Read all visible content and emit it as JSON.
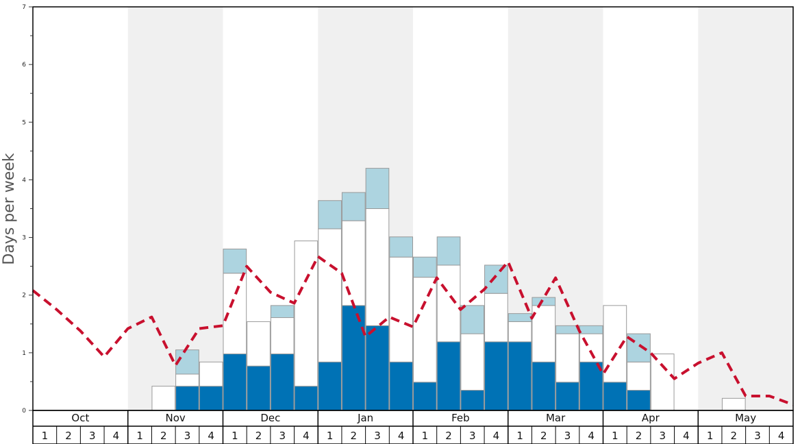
{
  "chart_data": {
    "type": "bar",
    "ylabel": "Days per week",
    "ylim": [
      0,
      7
    ],
    "y_ticks": [
      "0",
      "1",
      "2",
      "3",
      "4",
      "5",
      "6",
      "7"
    ],
    "months": [
      "Oct",
      "Nov",
      "Dec",
      "Jan",
      "Feb",
      "Mar",
      "Apr",
      "May"
    ],
    "weeks_per_month": [
      "1",
      "2",
      "3",
      "4"
    ],
    "shaded_months": [
      1,
      3,
      5,
      7
    ],
    "colors": {
      "dark": "#0072b5",
      "white": "#ffffff",
      "light": "#add4e0",
      "line": "#c8102e",
      "shade": "#f0f0f0",
      "bar_stroke": "#999999"
    },
    "series": [
      {
        "key": "dark",
        "values": [
          0,
          0,
          0,
          0,
          0,
          0,
          0.42,
          0.42,
          0.98,
          0.77,
          0.98,
          0.42,
          0.84,
          1.82,
          1.47,
          0.84,
          0.49,
          1.19,
          0.35,
          1.19,
          1.19,
          0.84,
          0.49,
          0.84,
          0.49,
          0.35,
          0,
          0,
          0,
          0,
          0,
          0
        ]
      },
      {
        "key": "white",
        "values": [
          0,
          0,
          0,
          0,
          0,
          0.42,
          0.21,
          0.42,
          1.4,
          0.77,
          0.63,
          2.52,
          2.31,
          1.47,
          2.03,
          1.82,
          1.82,
          1.33,
          0.98,
          0.84,
          0.35,
          0.98,
          0.84,
          0.49,
          1.33,
          0.49,
          0.98,
          0,
          0,
          0.21,
          0,
          0
        ]
      },
      {
        "key": "light",
        "values": [
          0,
          0,
          0,
          0,
          0,
          0,
          0.42,
          0,
          0.42,
          0,
          0.21,
          0,
          0.49,
          0.49,
          0.7,
          0.35,
          0.35,
          0.49,
          0.49,
          0.49,
          0.14,
          0.14,
          0.14,
          0.14,
          0,
          0.49,
          0,
          0,
          0,
          0,
          0,
          0
        ]
      }
    ],
    "line_values": [
      2.08,
      1.75,
      1.38,
      0.93,
      1.42,
      1.62,
      0.78,
      1.42,
      1.47,
      2.5,
      2.05,
      1.86,
      2.67,
      2.38,
      1.28,
      1.62,
      1.45,
      2.3,
      1.75,
      2.1,
      2.58,
      1.6,
      2.3,
      1.38,
      0.63,
      1.28,
      1.0,
      0.55,
      0.82,
      1.0,
      0.25,
      0.25,
      0.1
    ]
  }
}
